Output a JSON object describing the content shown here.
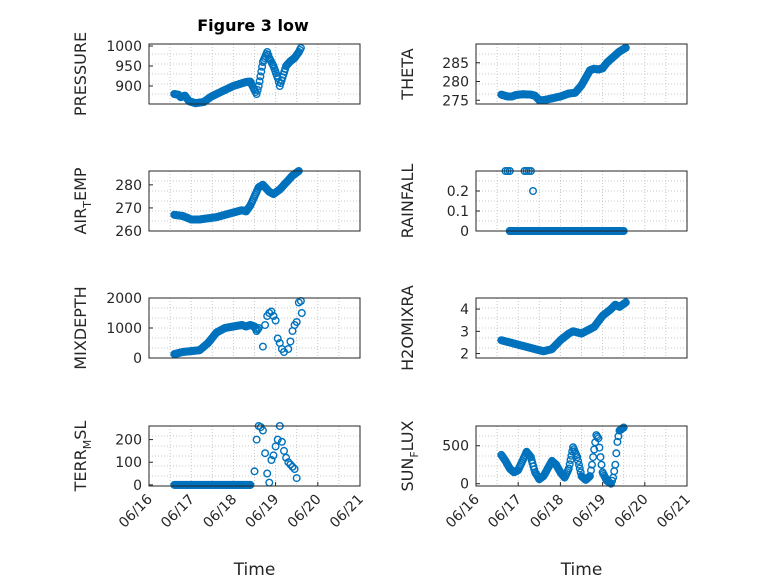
{
  "figure_title": "Figure 3 low",
  "colors": {
    "marker": "#0072BD",
    "axis": "#262626",
    "grid": "#c8c8c8"
  },
  "chart_data": [
    {
      "type": "scatter",
      "id": "pressure",
      "ylabel": {
        "base": "PRESSURE",
        "sub": ""
      },
      "ylim": [
        855,
        1005
      ],
      "yticks": [
        {
          "v": 900,
          "t": "900"
        },
        {
          "v": 950,
          "t": "950"
        },
        {
          "v": 1000,
          "t": "1000"
        }
      ],
      "xticks": [],
      "xlabel": "",
      "curve": [
        [
          16.6,
          880
        ],
        [
          16.7,
          878
        ],
        [
          16.75,
          872
        ],
        [
          16.85,
          876
        ],
        [
          16.95,
          862
        ],
        [
          17.1,
          857
        ],
        [
          17.3,
          860
        ],
        [
          17.45,
          872
        ],
        [
          17.6,
          880
        ],
        [
          17.8,
          890
        ],
        [
          18.0,
          900
        ],
        [
          18.15,
          905
        ],
        [
          18.3,
          910
        ],
        [
          18.4,
          911
        ],
        [
          18.5,
          890
        ],
        [
          18.55,
          880
        ],
        [
          18.6,
          900
        ],
        [
          18.7,
          960
        ],
        [
          18.8,
          985
        ],
        [
          18.85,
          970
        ],
        [
          18.95,
          950
        ],
        [
          19.05,
          920
        ],
        [
          19.1,
          900
        ],
        [
          19.25,
          950
        ],
        [
          19.35,
          962
        ],
        [
          19.45,
          970
        ],
        [
          19.55,
          985
        ],
        [
          19.6,
          995
        ]
      ],
      "scatter": [],
      "segments": []
    },
    {
      "type": "scatter",
      "id": "theta",
      "ylabel": {
        "base": "THETA",
        "sub": ""
      },
      "ylim": [
        274,
        290
      ],
      "yticks": [
        {
          "v": 275,
          "t": "275"
        },
        {
          "v": 280,
          "t": "280"
        },
        {
          "v": 285,
          "t": "285"
        }
      ],
      "xticks": [],
      "xlabel": "",
      "curve": [
        [
          16.6,
          276.5
        ],
        [
          16.75,
          276
        ],
        [
          16.85,
          276
        ],
        [
          16.95,
          276.4
        ],
        [
          17.1,
          276.6
        ],
        [
          17.3,
          276.5
        ],
        [
          17.4,
          276.2
        ],
        [
          17.5,
          275
        ],
        [
          17.6,
          275
        ],
        [
          17.8,
          275.5
        ],
        [
          18.0,
          276
        ],
        [
          18.2,
          276.8
        ],
        [
          18.35,
          277
        ],
        [
          18.5,
          279
        ],
        [
          18.6,
          281
        ],
        [
          18.7,
          283
        ],
        [
          18.8,
          283.4
        ],
        [
          18.9,
          283.2
        ],
        [
          19.0,
          283.5
        ],
        [
          19.1,
          285
        ],
        [
          19.2,
          286
        ],
        [
          19.3,
          287
        ],
        [
          19.4,
          288
        ],
        [
          19.55,
          289
        ]
      ],
      "scatter": [],
      "segments": []
    },
    {
      "type": "scatter",
      "id": "air_temp",
      "ylabel": {
        "base": "AIR",
        "sub": "T",
        "rest": "EMP"
      },
      "ylim": [
        260,
        286
      ],
      "yticks": [
        {
          "v": 260,
          "t": "260"
        },
        {
          "v": 270,
          "t": "270"
        },
        {
          "v": 280,
          "t": "280"
        }
      ],
      "xticks": [],
      "xlabel": "",
      "curve": [
        [
          16.6,
          267
        ],
        [
          16.8,
          266.5
        ],
        [
          17.0,
          265
        ],
        [
          17.2,
          265
        ],
        [
          17.4,
          265.5
        ],
        [
          17.6,
          266
        ],
        [
          17.8,
          267
        ],
        [
          18.0,
          268
        ],
        [
          18.2,
          269
        ],
        [
          18.3,
          268.5
        ],
        [
          18.4,
          271
        ],
        [
          18.5,
          275
        ],
        [
          18.6,
          279
        ],
        [
          18.7,
          280
        ],
        [
          18.85,
          277
        ],
        [
          18.95,
          276
        ],
        [
          19.1,
          278
        ],
        [
          19.2,
          280
        ],
        [
          19.3,
          282
        ],
        [
          19.4,
          284
        ],
        [
          19.55,
          286
        ]
      ],
      "scatter": [],
      "segments": []
    },
    {
      "type": "scatter",
      "id": "rainfall",
      "ylabel": {
        "base": "RAINFALL",
        "sub": ""
      },
      "ylim": [
        0,
        0.3
      ],
      "yticks": [
        {
          "v": 0,
          "t": "0"
        },
        {
          "v": 0.1,
          "t": "0.1"
        },
        {
          "v": 0.2,
          "t": "0.2"
        }
      ],
      "xticks": [],
      "xlabel": "",
      "curve": [],
      "scatter": [
        [
          16.7,
          0.3
        ],
        [
          16.75,
          0.3
        ],
        [
          16.8,
          0.3
        ],
        [
          17.15,
          0.3
        ],
        [
          17.2,
          0.3
        ],
        [
          17.25,
          0.3
        ],
        [
          17.3,
          0.3
        ],
        [
          17.35,
          0.2
        ],
        [
          17.3,
          0
        ],
        [
          16.8,
          0
        ],
        [
          17.5,
          0
        ],
        [
          18.0,
          0
        ],
        [
          18.5,
          0
        ],
        [
          19.0,
          0
        ],
        [
          19.4,
          0
        ]
      ],
      "segments": [
        [
          16.8,
          0,
          19.5,
          0
        ]
      ]
    },
    {
      "type": "scatter",
      "id": "mixdepth",
      "ylabel": {
        "base": "MIXDEPTH",
        "sub": ""
      },
      "ylim": [
        0,
        2000
      ],
      "yticks": [
        {
          "v": 0,
          "t": "0"
        },
        {
          "v": 1000,
          "t": "1000"
        },
        {
          "v": 2000,
          "t": "2000"
        }
      ],
      "xticks": [],
      "xlabel": "",
      "curve": [
        [
          16.6,
          130
        ],
        [
          16.8,
          200
        ],
        [
          17.0,
          230
        ],
        [
          17.2,
          260
        ],
        [
          17.4,
          500
        ],
        [
          17.6,
          850
        ],
        [
          17.8,
          1000
        ],
        [
          18.0,
          1050
        ],
        [
          18.2,
          1100
        ],
        [
          18.3,
          1050
        ],
        [
          18.4,
          1100
        ],
        [
          18.5,
          1050
        ],
        [
          18.55,
          900
        ],
        [
          18.6,
          1000
        ]
      ],
      "scatter": [
        [
          18.7,
          380
        ],
        [
          18.75,
          1100
        ],
        [
          18.8,
          1400
        ],
        [
          18.85,
          1500
        ],
        [
          18.9,
          1550
        ],
        [
          18.95,
          1400
        ],
        [
          19.0,
          1250
        ],
        [
          19.05,
          650
        ],
        [
          19.1,
          500
        ],
        [
          19.15,
          300
        ],
        [
          19.2,
          200
        ],
        [
          19.3,
          300
        ],
        [
          19.35,
          550
        ],
        [
          19.4,
          900
        ],
        [
          19.45,
          1100
        ],
        [
          19.5,
          1200
        ],
        [
          19.55,
          1850
        ],
        [
          19.6,
          1900
        ],
        [
          19.62,
          1500
        ]
      ],
      "segments": []
    },
    {
      "type": "scatter",
      "id": "h2omixra",
      "ylabel": {
        "base": "H2OMIXRA",
        "sub": ""
      },
      "ylim": [
        1.8,
        4.5
      ],
      "yticks": [
        {
          "v": 2,
          "t": "2"
        },
        {
          "v": 3,
          "t": "3"
        },
        {
          "v": 4,
          "t": "4"
        }
      ],
      "xticks": [],
      "xlabel": "",
      "curve": [
        [
          16.6,
          2.6
        ],
        [
          16.8,
          2.5
        ],
        [
          17.0,
          2.4
        ],
        [
          17.2,
          2.3
        ],
        [
          17.4,
          2.2
        ],
        [
          17.6,
          2.1
        ],
        [
          17.8,
          2.2
        ],
        [
          18.0,
          2.6
        ],
        [
          18.2,
          2.9
        ],
        [
          18.3,
          3.0
        ],
        [
          18.5,
          2.9
        ],
        [
          18.6,
          3.0
        ],
        [
          18.8,
          3.2
        ],
        [
          19.0,
          3.7
        ],
        [
          19.2,
          4.0
        ],
        [
          19.3,
          4.2
        ],
        [
          19.4,
          4.1
        ],
        [
          19.55,
          4.3
        ]
      ],
      "scatter": [],
      "segments": []
    },
    {
      "type": "scatter",
      "id": "terr_msl",
      "ylabel": {
        "base": "TERR",
        "sub": "M",
        "rest": "SL"
      },
      "ylim": [
        -5,
        260
      ],
      "yticks": [
        {
          "v": 0,
          "t": "0"
        },
        {
          "v": 100,
          "t": "100"
        },
        {
          "v": 200,
          "t": "200"
        }
      ],
      "xticks": [
        {
          "v": 16,
          "t": "06/16"
        },
        {
          "v": 17,
          "t": "06/17"
        },
        {
          "v": 18,
          "t": "06/18"
        },
        {
          "v": 19,
          "t": "06/19"
        },
        {
          "v": 20,
          "t": "06/20"
        },
        {
          "v": 21,
          "t": "06/21"
        }
      ],
      "xlabel": "Time",
      "curve": [],
      "scatter": [
        [
          18.4,
          0
        ],
        [
          18.5,
          60
        ],
        [
          18.55,
          200
        ],
        [
          18.6,
          260
        ],
        [
          18.65,
          255
        ],
        [
          18.7,
          240
        ],
        [
          18.75,
          140
        ],
        [
          18.8,
          50
        ],
        [
          18.85,
          10
        ],
        [
          18.9,
          110
        ],
        [
          18.95,
          130
        ],
        [
          19.0,
          170
        ],
        [
          19.05,
          200
        ],
        [
          19.1,
          260
        ],
        [
          19.15,
          190
        ],
        [
          19.2,
          150
        ],
        [
          19.25,
          120
        ],
        [
          19.3,
          100
        ],
        [
          19.35,
          90
        ],
        [
          19.4,
          80
        ],
        [
          19.45,
          70
        ],
        [
          19.5,
          30
        ]
      ],
      "segments": [
        [
          16.6,
          0,
          18.4,
          0
        ]
      ]
    },
    {
      "type": "scatter",
      "id": "sun_flux",
      "ylabel": {
        "base": "SUN",
        "sub": "F",
        "rest": "LUX"
      },
      "ylim": [
        -30,
        760
      ],
      "yticks": [
        {
          "v": 0,
          "t": "0"
        },
        {
          "v": 500,
          "t": "500"
        }
      ],
      "xticks": [
        {
          "v": 16,
          "t": "06/16"
        },
        {
          "v": 17,
          "t": "06/17"
        },
        {
          "v": 18,
          "t": "06/18"
        },
        {
          "v": 19,
          "t": "06/19"
        },
        {
          "v": 20,
          "t": "06/20"
        },
        {
          "v": 21,
          "t": "06/21"
        }
      ],
      "xlabel": "Time",
      "curve": [
        [
          16.6,
          380
        ],
        [
          16.7,
          300
        ],
        [
          16.8,
          200
        ],
        [
          16.9,
          150
        ],
        [
          17.0,
          180
        ],
        [
          17.1,
          300
        ],
        [
          17.2,
          420
        ],
        [
          17.3,
          350
        ],
        [
          17.4,
          150
        ],
        [
          17.5,
          60
        ],
        [
          17.6,
          100
        ],
        [
          17.7,
          200
        ],
        [
          17.8,
          300
        ],
        [
          17.9,
          250
        ],
        [
          18.0,
          150
        ],
        [
          18.1,
          80
        ],
        [
          18.2,
          200
        ],
        [
          18.3,
          480
        ],
        [
          18.4,
          350
        ],
        [
          18.5,
          100
        ],
        [
          18.6,
          50
        ],
        [
          18.7,
          100
        ],
        [
          18.75,
          250
        ],
        [
          18.8,
          450
        ],
        [
          18.85,
          640
        ],
        [
          18.9,
          600
        ],
        [
          18.95,
          350
        ],
        [
          19.0,
          150
        ],
        [
          19.1,
          40
        ],
        [
          19.2,
          0
        ],
        [
          19.25,
          80
        ],
        [
          19.3,
          250
        ],
        [
          19.35,
          550
        ],
        [
          19.4,
          700
        ],
        [
          19.5,
          740
        ]
      ],
      "scatter": [],
      "segments": []
    }
  ]
}
